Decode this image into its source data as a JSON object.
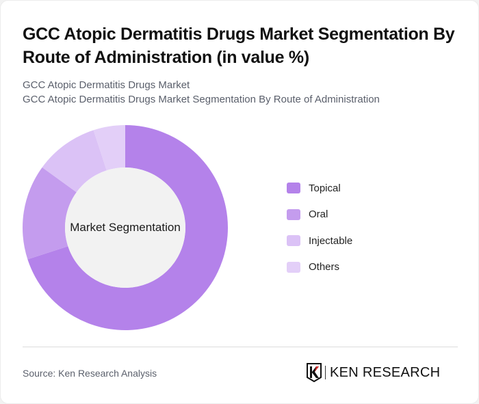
{
  "header": {
    "title": "GCC Atopic Dermatitis Drugs Market Segmentation By Route of Administration (in value %)",
    "subtitle_line1": "GCC Atopic Dermatitis Drugs Market",
    "subtitle_line2": "GCC Atopic Dermatitis Drugs Market Segmentation By Route of Administration"
  },
  "chart": {
    "center_label": "Market Segmentation"
  },
  "legend": {
    "items": [
      {
        "label": "Topical",
        "color": "#b482ea"
      },
      {
        "label": "Oral",
        "color": "#c49cee"
      },
      {
        "label": "Injectable",
        "color": "#dbc2f6"
      },
      {
        "label": "Others",
        "color": "#e3cff8"
      }
    ]
  },
  "footer": {
    "source": "Source: Ken Research Analysis",
    "logo_text": "KEN RESEARCH"
  },
  "chart_data": {
    "type": "pie",
    "variant": "donut",
    "title": "GCC Atopic Dermatitis Drugs Market Segmentation By Route of Administration (in value %)",
    "center_label": "Market Segmentation",
    "categories": [
      "Topical",
      "Oral",
      "Injectable",
      "Others"
    ],
    "values": [
      70,
      15,
      10,
      5
    ],
    "colors": [
      "#b482ea",
      "#c49cee",
      "#dbc2f6",
      "#e3cff8"
    ],
    "unit": "%",
    "legend_position": "right",
    "start_angle": "12 o'clock, clockwise"
  }
}
